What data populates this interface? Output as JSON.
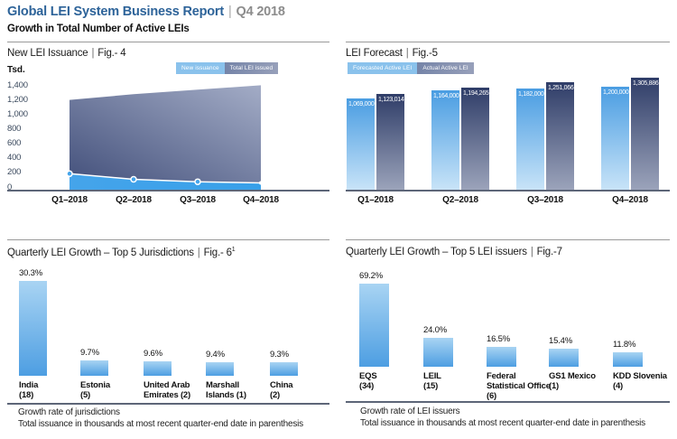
{
  "header": {
    "title": "Global LEI System Business Report",
    "sep": "|",
    "period": "Q4 2018",
    "subtitle": "Growth in Total Number of Active LEIs"
  },
  "panels": {
    "issuance": {
      "title": "New LEI Issuance",
      "fig": "Fig.- 4",
      "unit": "Tsd."
    },
    "forecast": {
      "title": "LEI Forecast",
      "fig": "Fig.-5"
    },
    "jurisdictions": {
      "title": "Quarterly LEI Growth – Top 5 Jurisdictions",
      "fig": "Fig.- 6",
      "fig_sup": "1",
      "footnote_line1": "Growth rate of jurisdictions",
      "footnote_line2": "Total issuance in thousands at most recent quarter-end date in parenthesis"
    },
    "issuers": {
      "title": "Quarterly LEI Growth – Top 5 LEI issuers",
      "fig": "Fig.-7",
      "footnote_line1": "Growth rate of LEI issuers",
      "footnote_line2": "Total issuance in thousands at most recent quarter-end date in parenthesis"
    }
  },
  "chart_data": [
    {
      "id": "fig4",
      "type": "area",
      "title": "New LEI Issuance",
      "ylabel": "Tsd.",
      "ylim": [
        0,
        1400
      ],
      "grid": false,
      "legend_position": "top-right",
      "categories": [
        "Q1–2018",
        "Q2–2018",
        "Q3–2018",
        "Q4–2018"
      ],
      "yticks": [
        {
          "value": 1400,
          "label": "1,400"
        },
        {
          "value": 1200,
          "label": "1,200"
        },
        {
          "value": 1000,
          "label": "1,000"
        },
        {
          "value": 800,
          "label": "800"
        },
        {
          "value": 600,
          "label": "600"
        },
        {
          "value": 400,
          "label": "400"
        },
        {
          "value": 200,
          "label": "200"
        },
        {
          "value": 0,
          "label": "0"
        }
      ],
      "series": [
        {
          "name": "New issuance",
          "values": [
            200,
            130,
            100,
            85
          ]
        },
        {
          "name": "Total LEI issued",
          "values": [
            1123,
            1194,
            1251,
            1306
          ]
        }
      ]
    },
    {
      "id": "fig5",
      "type": "bar",
      "title": "LEI Forecast",
      "categories": [
        "Q1–2018",
        "Q2–2018",
        "Q3–2018",
        "Q4–2018"
      ],
      "series": [
        {
          "name": "Forecasted Active LEI",
          "values": [
            1069000,
            1164000,
            1182000,
            1200000
          ],
          "labels": [
            "1,069,000",
            "1,164,000",
            "1,182,000",
            "1,200,000"
          ]
        },
        {
          "name": "Actual Active LEI",
          "values": [
            1123014,
            1194265,
            1251066,
            1305886
          ],
          "labels": [
            "1,123,014",
            "1,194,265",
            "1,251,066",
            "1,305,886"
          ]
        }
      ]
    },
    {
      "id": "fig6",
      "type": "bar",
      "title": "Quarterly LEI Growth – Top 5 Jurisdictions",
      "categories": [
        "India (18)",
        "Estonia (5)",
        "United Arab Emirates (2)",
        "Marshall Islands (1)",
        "China (2)"
      ],
      "category_lines": [
        [
          "India",
          "(18)"
        ],
        [
          "Estonia",
          "(5)"
        ],
        [
          "United Arab",
          "Emirates (2)"
        ],
        [
          "Marshall",
          "Islands (1)"
        ],
        [
          "China",
          "(2)"
        ]
      ],
      "values": [
        30.3,
        9.7,
        9.6,
        9.4,
        9.3
      ],
      "labels": [
        "30.3%",
        "9.7%",
        "9.6%",
        "9.4%",
        "9.3%"
      ]
    },
    {
      "id": "fig7",
      "type": "bar",
      "title": "Quarterly LEI Growth – Top 5 LEI issuers",
      "categories": [
        "EQS (34)",
        "LEIL (15)",
        "Federal Statistical Office (6)",
        "GS1 Mexico (1)",
        "KDD Slovenia (4)"
      ],
      "category_lines": [
        [
          "EQS",
          "(34)"
        ],
        [
          "LEIL",
          "(15)"
        ],
        [
          "Federal",
          "Statistical Office",
          "(6)"
        ],
        [
          "GS1 Mexico",
          "(1)"
        ],
        [
          "KDD Slovenia",
          "(4)"
        ]
      ],
      "values": [
        69.2,
        24.0,
        16.5,
        15.4,
        11.8
      ],
      "labels": [
        "69.2%",
        "24.0%",
        "16.5%",
        "15.4%",
        "11.8%"
      ]
    }
  ],
  "colors": {
    "header_blue": "#2d6399",
    "muted_gray": "#8c8c8c",
    "light_bar_top": "#4a9de2",
    "light_bar_bottom": "#c9e4f8",
    "dark_bar_top": "#2f3d68",
    "dark_bar_bottom": "#9ca4bb",
    "growth_bar_top": "#a9d4f3",
    "growth_bar_bottom": "#4d9ee2",
    "area_light": "#45a4ea",
    "area_light2": "#38a0e9",
    "area_dark_start": "#44517c",
    "area_dark_end": "#a3acc6",
    "legend_light": "#8ac2ec",
    "legend_dark_start": "#7584a8",
    "legend_dark_end": "#97a0ba",
    "axis": "#5d6678"
  }
}
